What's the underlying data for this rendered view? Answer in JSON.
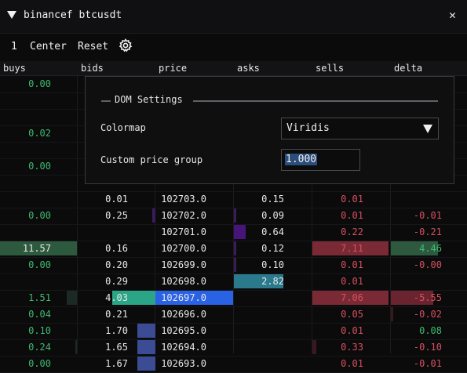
{
  "window": {
    "title": "binancef btcusdt",
    "close_glyph": "✕"
  },
  "toolbar": {
    "step": "1",
    "center_label": "Center",
    "reset_label": "Reset",
    "settings_icon": "gear-icon"
  },
  "columns": [
    "buys",
    "bids",
    "price",
    "asks",
    "sells",
    "delta"
  ],
  "rows": [
    {
      "buys": "0.00",
      "bids": "",
      "price": "",
      "asks": "",
      "sells": "",
      "delta": ""
    },
    {
      "buys": "",
      "bids": "",
      "price": "",
      "asks": "",
      "sells": "",
      "delta": ""
    },
    {
      "buys": "",
      "bids": "",
      "price": "",
      "asks": "",
      "sells": "",
      "delta": ""
    },
    {
      "buys": "0.02",
      "bids": "",
      "price": "",
      "asks": "",
      "sells": "",
      "delta": ""
    },
    {
      "buys": "",
      "bids": "",
      "price": "",
      "asks": "",
      "sells": "",
      "delta": ""
    },
    {
      "buys": "0.00",
      "bids": "",
      "price": "",
      "asks": "",
      "sells": "",
      "delta": ""
    },
    {
      "buys": "",
      "bids": "",
      "price": "",
      "asks": "",
      "sells": "",
      "delta": ""
    },
    {
      "buys": "",
      "bids": "0.01",
      "price": "102703.0",
      "asks": "0.15",
      "sells": "0.01",
      "delta": ""
    },
    {
      "buys": "0.00",
      "bids": "0.25",
      "price": "102702.0",
      "asks": "0.09",
      "sells": "0.01",
      "delta": "-0.01"
    },
    {
      "buys": "",
      "bids": "",
      "price": "102701.0",
      "asks": "0.64",
      "sells": "0.22",
      "delta": "-0.21"
    },
    {
      "buys": "11.57",
      "bids": "0.16",
      "price": "102700.0",
      "asks": "0.12",
      "sells": "7.11",
      "delta": "4.46"
    },
    {
      "buys": "0.00",
      "bids": "0.20",
      "price": "102699.0",
      "asks": "0.10",
      "sells": "0.01",
      "delta": "-0.00"
    },
    {
      "buys": "",
      "bids": "0.29",
      "price": "102698.0",
      "asks": "2.82",
      "sells": "0.01",
      "delta": ""
    },
    {
      "buys": "1.51",
      "bids": "4.03",
      "price": "102697.0",
      "asks": "",
      "sells": "7.06",
      "delta": "-5.55"
    },
    {
      "buys": "0.04",
      "bids": "0.21",
      "price": "102696.0",
      "asks": "",
      "sells": "0.05",
      "delta": "-0.02"
    },
    {
      "buys": "0.10",
      "bids": "1.70",
      "price": "102695.0",
      "asks": "",
      "sells": "0.01",
      "delta": "0.08"
    },
    {
      "buys": "0.24",
      "bids": "1.65",
      "price": "102694.0",
      "asks": "",
      "sells": "0.33",
      "delta": "-0.10"
    },
    {
      "buys": "0.00",
      "bids": "1.67",
      "price": "102693.0",
      "asks": "",
      "sells": "0.01",
      "delta": "-0.01"
    }
  ],
  "dom_settings": {
    "legend": "DOM Settings",
    "colormap_label": "Colormap",
    "colormap_value": "Viridis",
    "price_group_label": "Custom price group",
    "price_group_value": "1.000"
  },
  "colors": {
    "buy_text": "#3fb970",
    "sell_text": "#d6505e",
    "current_price": "#2a62e6"
  }
}
